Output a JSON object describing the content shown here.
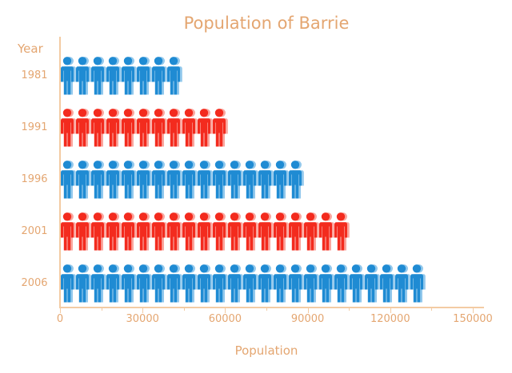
{
  "title": "Population of Barrie",
  "axes": {
    "y_title": "Year",
    "x_title": "Population"
  },
  "icon": "person-icon",
  "colors": {
    "background": "#FFFFFF",
    "text": "#E4A671",
    "axis_line": "#F3CBA3",
    "blue": "#1F8BD3",
    "blue_light": "#92C8EC",
    "red": "#F32B1E",
    "red_light": "#FAA69E"
  },
  "chart_data": {
    "type": "bar",
    "subtype": "pictogram",
    "orientation": "horizontal",
    "title": "Population of Barrie",
    "xlabel": "Population",
    "ylabel": "Year",
    "categories": [
      "1981",
      "1991",
      "1996",
      "2001",
      "2006"
    ],
    "values": [
      44000,
      60500,
      88000,
      104500,
      132000
    ],
    "icon_counts": [
      8,
      11,
      16,
      19,
      24
    ],
    "people_per_icon": 5500,
    "series_colors": [
      "blue",
      "red",
      "blue",
      "red",
      "blue"
    ],
    "xlim": [
      0,
      150000
    ],
    "x_ticks": [
      0,
      30000,
      60000,
      90000,
      120000,
      150000
    ],
    "x_tick_labels": [
      "0",
      "30000",
      "60000",
      "90000",
      "120000",
      "150000"
    ],
    "x_minor_ticks": [
      15000,
      45000,
      75000,
      105000,
      135000
    ],
    "grid": false,
    "legend": false
  }
}
